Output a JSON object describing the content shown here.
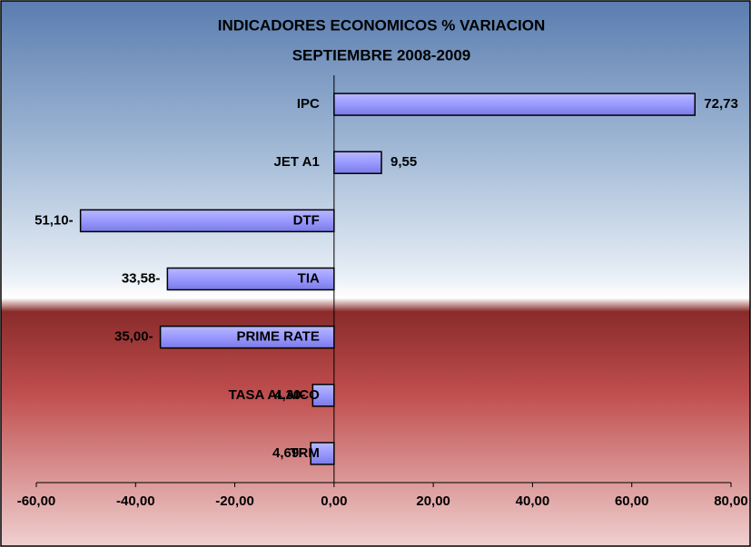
{
  "chart_data": {
    "type": "hbar",
    "title": "INDICADORES ECONOMICOS % VARIACION",
    "subtitle": "SEPTIEMBRE 2008-2009",
    "categories": [
      "IPC",
      "JET A1",
      "DTF",
      "TIA",
      "PRIME RATE",
      "TASA ALAICO",
      "TRM"
    ],
    "values": [
      72.73,
      9.55,
      -51.1,
      -33.58,
      -35.0,
      -4.3,
      -4.69
    ],
    "value_labels": [
      "72,73",
      "9,55",
      "51,10-",
      "33,58-",
      "35,00-",
      "4,30-",
      "4,69-"
    ],
    "color": "#9999ff",
    "xlim": [
      -60,
      80
    ],
    "xticks": [
      {
        "value": -60,
        "label": "-60,00"
      },
      {
        "value": -40,
        "label": "-40,00"
      },
      {
        "value": -20,
        "label": "-20,00"
      },
      {
        "value": 0,
        "label": "0,00"
      },
      {
        "value": 20,
        "label": "20,00"
      },
      {
        "value": 40,
        "label": "40,00"
      },
      {
        "value": 60,
        "label": "60,00"
      },
      {
        "value": 80,
        "label": "80,00"
      }
    ]
  }
}
